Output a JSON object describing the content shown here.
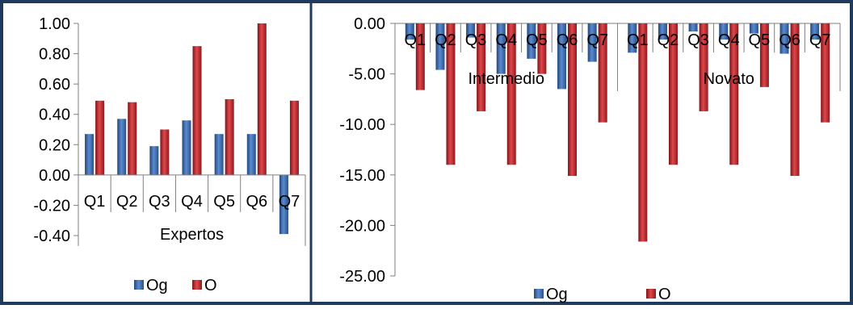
{
  "colors": {
    "frame": "#1f3a5c",
    "og": "#3f6fb0",
    "og_dark": "#23477a",
    "o": "#c0282d",
    "o_dark": "#7e1418",
    "axis": "#7f7f7f"
  },
  "chart_data": [
    {
      "type": "bar",
      "group_label": "Expertos",
      "categories": [
        "Q1",
        "Q2",
        "Q3",
        "Q4",
        "Q5",
        "Q6",
        "Q7"
      ],
      "series": [
        {
          "name": "Og",
          "values": [
            0.27,
            0.37,
            0.19,
            0.36,
            0.27,
            0.27,
            -0.39
          ]
        },
        {
          "name": "O",
          "values": [
            0.49,
            0.48,
            0.3,
            0.85,
            0.5,
            1.0,
            0.49
          ]
        }
      ],
      "yticks": [
        "1.00",
        "0.80",
        "0.60",
        "0.40",
        "0.20",
        "0.00",
        "-0.20",
        "-0.40"
      ],
      "ylim": [
        -0.4,
        1.0
      ],
      "legend": [
        "Og",
        "O"
      ],
      "legend_position": "bottom"
    },
    {
      "type": "bar",
      "groups": [
        {
          "group_label": "Intermedio",
          "categories": [
            "Q1",
            "Q2",
            "Q3",
            "Q4",
            "Q5",
            "Q6",
            "Q7"
          ],
          "series": [
            {
              "name": "Og",
              "values": [
                -1.6,
                -4.6,
                -1.4,
                -5.0,
                -3.5,
                -6.5,
                -3.8
              ]
            },
            {
              "name": "O",
              "values": [
                -6.6,
                -14.0,
                -8.7,
                -14.0,
                -5.0,
                -15.1,
                -9.8
              ]
            }
          ]
        },
        {
          "group_label": "Novato",
          "categories": [
            "Q1",
            "Q2",
            "Q3",
            "Q4",
            "Q5",
            "Q6",
            "Q7"
          ],
          "series": [
            {
              "name": "Og",
              "values": [
                -2.9,
                -1.6,
                -0.8,
                -1.6,
                -1.0,
                -3.0,
                -1.6
              ]
            },
            {
              "name": "O",
              "values": [
                -21.6,
                -14.0,
                -8.7,
                -14.0,
                -6.3,
                -15.1,
                -9.8
              ]
            }
          ]
        }
      ],
      "yticks": [
        "0.00",
        "-5.00",
        "-10.00",
        "-15.00",
        "-20.00",
        "-25.00"
      ],
      "ylim": [
        -25,
        0
      ],
      "legend": [
        "Og",
        "O"
      ],
      "legend_position": "bottom"
    }
  ]
}
